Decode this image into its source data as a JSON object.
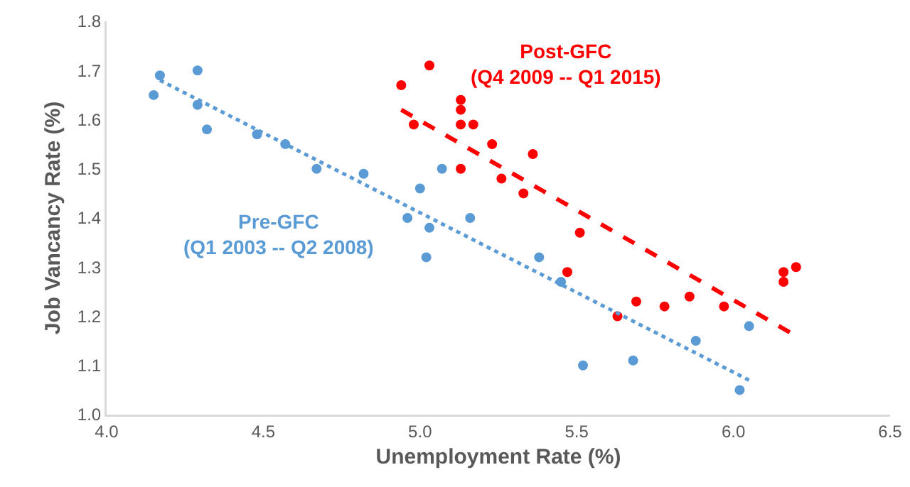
{
  "chart_data": {
    "type": "scatter",
    "xlabel": "Unemployment Rate (%)",
    "ylabel": "Job Vancancy Rate (%)",
    "xlim": [
      4.0,
      6.5
    ],
    "xticks": [
      {
        "value": 4,
        "label": "4.0"
      },
      {
        "value": 4.5,
        "label": "4.5"
      },
      {
        "value": 5,
        "label": "5.0"
      },
      {
        "value": 5.5,
        "label": "5.5"
      },
      {
        "value": 6,
        "label": "6.0"
      },
      {
        "value": 6.5,
        "label": "6.5"
      }
    ],
    "ylim": [
      1.0,
      1.8
    ],
    "yticks": [
      {
        "value": 1,
        "label": "1.0"
      },
      {
        "value": 1.1,
        "label": "1.1"
      },
      {
        "value": 1.2,
        "label": "1.2"
      },
      {
        "value": 1.3,
        "label": "1.3"
      },
      {
        "value": 1.4,
        "label": "1.4"
      },
      {
        "value": 1.5,
        "label": "1.5"
      },
      {
        "value": 1.6,
        "label": "1.6"
      },
      {
        "value": 1.7,
        "label": "1.7"
      },
      {
        "value": 1.8,
        "label": "1.8"
      }
    ],
    "grid": false,
    "legend": false,
    "marker": "circle",
    "series": [
      {
        "name": "Pre-GFC (Q1 2003 -- Q2 2008)",
        "color": "#5b9bd5",
        "x": [
          4.15,
          4.17,
          4.29,
          4.29,
          4.32,
          4.48,
          4.57,
          4.67,
          4.82,
          4.96,
          5.0,
          5.03,
          5.02,
          5.07,
          5.16,
          5.38,
          5.45,
          5.52,
          5.68,
          5.88,
          6.05,
          6.02
        ],
        "values": [
          1.65,
          1.69,
          1.7,
          1.63,
          1.58,
          1.57,
          1.55,
          1.5,
          1.49,
          1.4,
          1.46,
          1.38,
          1.32,
          1.5,
          1.4,
          1.32,
          1.27,
          1.1,
          1.11,
          1.15,
          1.18,
          1.05
        ]
      },
      {
        "name": "Post-GFC (Q4 2009 -- Q1 2015)",
        "color": "#ff0000",
        "x": [
          4.94,
          5.03,
          4.98,
          5.13,
          5.13,
          5.13,
          5.17,
          5.23,
          5.13,
          5.26,
          5.36,
          5.33,
          5.51,
          5.47,
          5.63,
          5.69,
          5.78,
          5.86,
          5.97,
          6.16,
          6.16,
          6.2
        ],
        "values": [
          1.67,
          1.71,
          1.59,
          1.64,
          1.62,
          1.59,
          1.59,
          1.55,
          1.5,
          1.48,
          1.53,
          1.45,
          1.37,
          1.29,
          1.2,
          1.23,
          1.22,
          1.24,
          1.22,
          1.29,
          1.27,
          1.3
        ]
      },
      {
        "type": "line",
        "color": "#5b9bd5",
        "line_style": "dotted",
        "marker": "none",
        "x": [
          4.17,
          6.05
        ],
        "values": [
          1.68,
          1.07
        ]
      },
      {
        "type": "line",
        "color": "#ff0000",
        "line_style": "dashed",
        "marker": "none",
        "x": [
          4.94,
          6.2
        ],
        "values": [
          1.62,
          1.16
        ]
      }
    ]
  }
}
